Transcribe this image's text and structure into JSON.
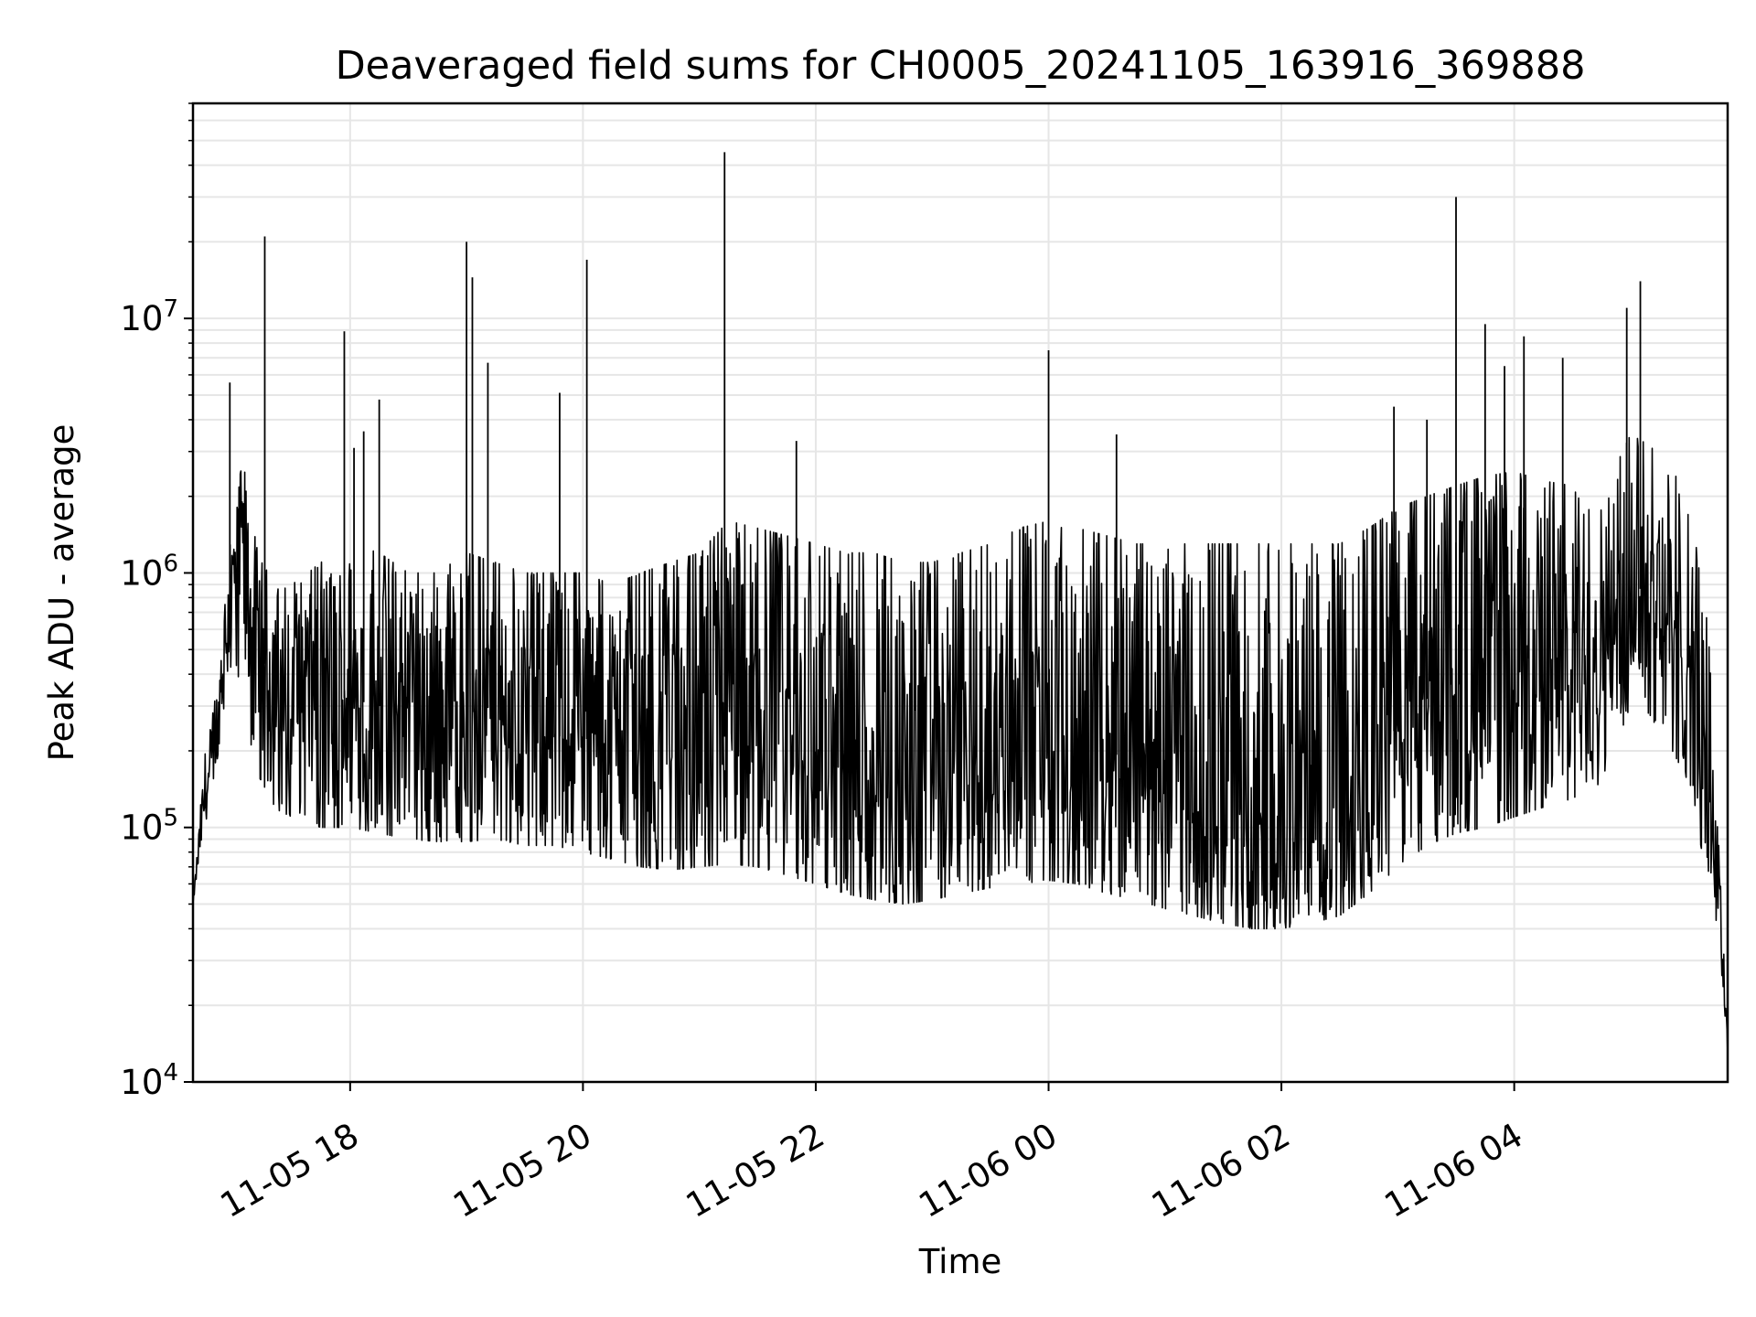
{
  "chart_data": {
    "type": "line",
    "title": "Deaveraged field sums for CH0005_20241105_163916_369888",
    "xlabel": "Time",
    "ylabel": "Peak ADU - average",
    "yscale": "log",
    "grid": true,
    "legend": "none",
    "line_color": "#000000",
    "grid_color": "#e6e6e6",
    "xlim": [
      "2024-11-05 16:39",
      "2024-11-06 05:50"
    ],
    "ylim": [
      10000,
      70000000
    ],
    "x_ticks": [
      {
        "at": "2024-11-05 18:00",
        "label": "11-05 18"
      },
      {
        "at": "2024-11-05 20:00",
        "label": "11-05 20"
      },
      {
        "at": "2024-11-05 22:00",
        "label": "11-05 22"
      },
      {
        "at": "2024-11-06 00:00",
        "label": "11-06 00"
      },
      {
        "at": "2024-11-06 02:00",
        "label": "11-06 02"
      },
      {
        "at": "2024-11-06 04:00",
        "label": "11-06 04"
      }
    ],
    "y_ticks": [
      {
        "value": 10000,
        "base": "10",
        "exp": "4"
      },
      {
        "value": 100000,
        "base": "10",
        "exp": "5"
      },
      {
        "value": 1000000,
        "base": "10",
        "exp": "6"
      },
      {
        "value": 10000000,
        "base": "10",
        "exp": "7"
      }
    ],
    "series": [
      {
        "x": [
          "2024-11-05 16:39",
          "2024-11-05 16:45",
          "2024-11-05 16:50",
          "2024-11-05 16:55",
          "2024-11-05 17:00",
          "2024-11-05 17:05",
          "2024-11-05 17:10",
          "2024-11-05 17:15",
          "2024-11-05 17:20",
          "2024-11-05 17:30",
          "2024-11-05 17:45",
          "2024-11-05 18:00",
          "2024-11-05 18:15",
          "2024-11-05 18:30",
          "2024-11-05 18:45",
          "2024-11-05 19:00",
          "2024-11-05 19:15",
          "2024-11-05 19:30",
          "2024-11-05 19:45",
          "2024-11-05 20:00",
          "2024-11-05 20:15",
          "2024-11-05 20:30",
          "2024-11-05 20:45",
          "2024-11-05 21:00",
          "2024-11-05 21:15",
          "2024-11-05 21:30",
          "2024-11-05 21:45",
          "2024-11-05 22:00",
          "2024-11-05 22:15",
          "2024-11-05 22:30",
          "2024-11-05 22:45",
          "2024-11-05 23:00",
          "2024-11-05 23:15",
          "2024-11-05 23:30",
          "2024-11-05 23:45",
          "2024-11-06 00:00",
          "2024-11-06 00:15",
          "2024-11-06 00:30",
          "2024-11-06 00:45",
          "2024-11-06 01:00",
          "2024-11-06 01:15",
          "2024-11-06 01:30",
          "2024-11-06 01:45",
          "2024-11-06 02:00",
          "2024-11-06 02:15",
          "2024-11-06 02:30",
          "2024-11-06 02:45",
          "2024-11-06 03:00",
          "2024-11-06 03:15",
          "2024-11-06 03:30",
          "2024-11-06 03:45",
          "2024-11-06 04:00",
          "2024-11-06 04:15",
          "2024-11-06 04:30",
          "2024-11-06 04:45",
          "2024-11-06 05:00",
          "2024-11-06 05:15",
          "2024-11-06 05:30",
          "2024-11-06 05:40",
          "2024-11-06 05:45",
          "2024-11-06 05:50"
        ],
        "y": [
          50000,
          130000,
          180000,
          500000,
          900000,
          1200000,
          550000,
          450000,
          400000,
          350000,
          330000,
          320000,
          300000,
          280000,
          260000,
          280000,
          300000,
          250000,
          230000,
          220000,
          240000,
          220000,
          200000,
          210000,
          230000,
          220000,
          200000,
          190000,
          170000,
          160000,
          150000,
          160000,
          170000,
          180000,
          200000,
          230000,
          220000,
          200000,
          180000,
          150000,
          130000,
          110000,
          100000,
          100000,
          120000,
          140000,
          180000,
          250000,
          320000,
          380000,
          420000,
          450000,
          480000,
          500000,
          600000,
          900000,
          800000,
          500000,
          150000,
          70000,
          15000
        ],
        "y_low": [
          50000,
          100000,
          150000,
          300000,
          500000,
          300000,
          170000,
          150000,
          120000,
          110000,
          100000,
          100000,
          95000,
          90000,
          88000,
          88000,
          90000,
          85000,
          85000,
          80000,
          75000,
          70000,
          68000,
          70000,
          72000,
          70000,
          65000,
          60000,
          55000,
          52000,
          50000,
          52000,
          55000,
          58000,
          60000,
          62000,
          60000,
          55000,
          52000,
          48000,
          45000,
          42000,
          40000,
          40000,
          42000,
          45000,
          55000,
          70000,
          85000,
          95000,
          100000,
          110000,
          120000,
          130000,
          150000,
          300000,
          250000,
          150000,
          60000,
          40000,
          12000
        ],
        "y_high": [
          50000,
          200000,
          300000,
          900000,
          1600000,
          3000000,
          1500000,
          1100000,
          1000000,
          900000,
          1100000,
          1300000,
          1200000,
          1000000,
          1000000,
          1200000,
          1100000,
          1000000,
          1000000,
          1000000,
          900000,
          1000000,
          1100000,
          1200000,
          1600000,
          1500000,
          1400000,
          1300000,
          1200000,
          1200000,
          1100000,
          1100000,
          1200000,
          1300000,
          1500000,
          1600000,
          1500000,
          1400000,
          1300000,
          1300000,
          1300000,
          1300000,
          1300000,
          1300000,
          1300000,
          1300000,
          1500000,
          1800000,
          2000000,
          2200000,
          2400000,
          2500000,
          2300000,
          2200000,
          2000000,
          3500000,
          3000000,
          2000000,
          600000,
          100000,
          15000
        ]
      }
    ],
    "spikes": [
      {
        "x": "2024-11-05 16:58",
        "y": 5600000
      },
      {
        "x": "2024-11-05 17:16",
        "y": 21000000
      },
      {
        "x": "2024-11-05 17:57",
        "y": 8900000
      },
      {
        "x": "2024-11-05 18:02",
        "y": 3100000
      },
      {
        "x": "2024-11-05 18:07",
        "y": 3600000
      },
      {
        "x": "2024-11-05 18:15",
        "y": 4800000
      },
      {
        "x": "2024-11-05 19:00",
        "y": 20000000
      },
      {
        "x": "2024-11-05 19:03",
        "y": 14500000
      },
      {
        "x": "2024-11-05 19:11",
        "y": 6700000
      },
      {
        "x": "2024-11-05 19:48",
        "y": 5100000
      },
      {
        "x": "2024-11-05 20:02",
        "y": 17000000
      },
      {
        "x": "2024-11-05 21:13",
        "y": 45000000
      },
      {
        "x": "2024-11-05 21:50",
        "y": 3300000
      },
      {
        "x": "2024-11-06 00:00",
        "y": 7500000
      },
      {
        "x": "2024-11-06 00:35",
        "y": 3500000
      },
      {
        "x": "2024-11-06 02:58",
        "y": 4500000
      },
      {
        "x": "2024-11-06 03:15",
        "y": 4000000
      },
      {
        "x": "2024-11-06 03:30",
        "y": 30000000
      },
      {
        "x": "2024-11-06 03:45",
        "y": 9500000
      },
      {
        "x": "2024-11-06 03:55",
        "y": 6500000
      },
      {
        "x": "2024-11-06 04:05",
        "y": 8500000
      },
      {
        "x": "2024-11-06 04:25",
        "y": 7000000
      },
      {
        "x": "2024-11-06 04:58",
        "y": 11000000
      },
      {
        "x": "2024-11-06 05:05",
        "y": 14000000
      }
    ]
  }
}
